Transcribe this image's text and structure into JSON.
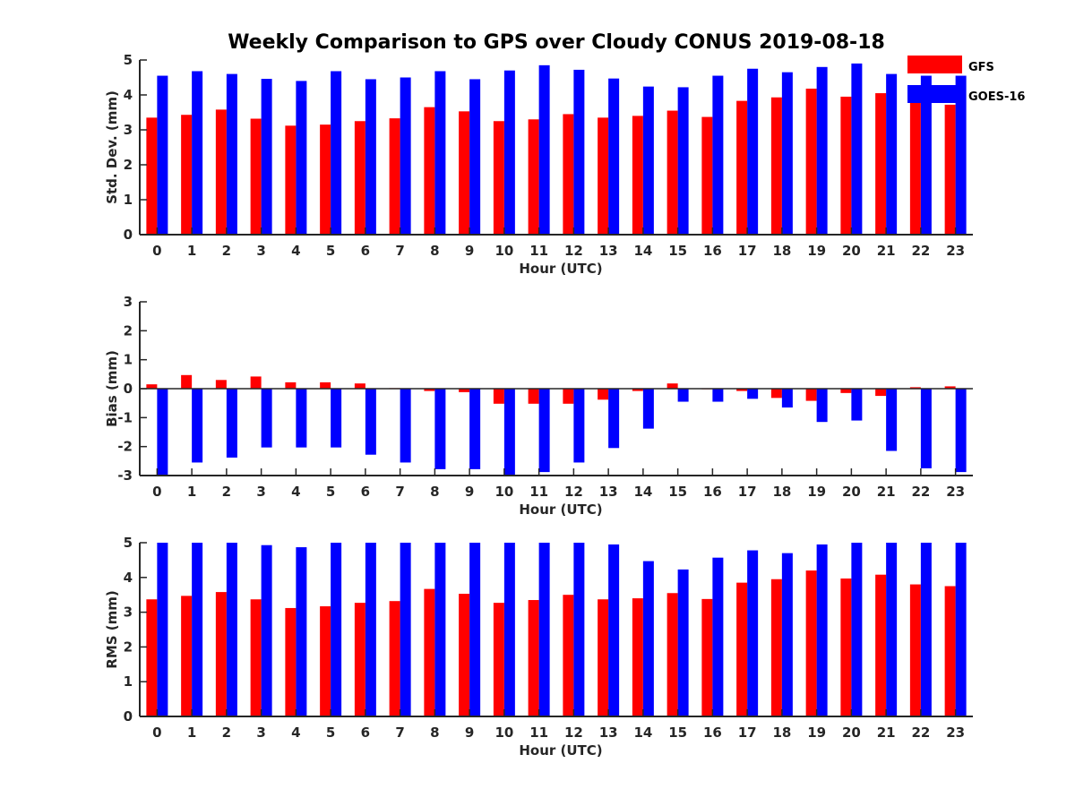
{
  "chart_data": [
    {
      "type": "bar",
      "title": "Weekly Comparison to GPS over Cloudy CONUS 2019-08-18",
      "xlabel": "Hour (UTC)",
      "ylabel": "Std. Dev. (mm)",
      "ylim": [
        0,
        5
      ],
      "yticks": [
        "0",
        "1",
        "2",
        "3",
        "4",
        "5"
      ],
      "categories": [
        "0",
        "1",
        "2",
        "3",
        "4",
        "5",
        "6",
        "7",
        "8",
        "9",
        "10",
        "11",
        "12",
        "13",
        "14",
        "15",
        "16",
        "17",
        "18",
        "19",
        "20",
        "21",
        "22",
        "23"
      ],
      "legend": "top-right",
      "series": [
        {
          "name": "GFS",
          "color": "#ff0000",
          "values": [
            3.35,
            3.43,
            3.58,
            3.32,
            3.12,
            3.15,
            3.25,
            3.33,
            3.65,
            3.53,
            3.25,
            3.3,
            3.45,
            3.35,
            3.4,
            3.55,
            3.37,
            3.83,
            3.93,
            4.18,
            3.95,
            4.05,
            3.78,
            3.72
          ]
        },
        {
          "name": "GOES-16",
          "color": "#0000ff",
          "values": [
            4.55,
            4.68,
            4.6,
            4.46,
            4.4,
            4.68,
            4.45,
            4.5,
            4.68,
            4.45,
            4.7,
            4.85,
            4.72,
            4.47,
            4.24,
            4.22,
            4.55,
            4.75,
            4.65,
            4.8,
            4.9,
            4.6,
            4.55,
            4.55
          ]
        }
      ]
    },
    {
      "type": "bar",
      "xlabel": "Hour (UTC)",
      "ylabel": "Bias (mm)",
      "ylim": [
        -3,
        3
      ],
      "yticks": [
        "-3",
        "-2",
        "-1",
        "0",
        "1",
        "2",
        "3"
      ],
      "categories": [
        "0",
        "1",
        "2",
        "3",
        "4",
        "5",
        "6",
        "7",
        "8",
        "9",
        "10",
        "11",
        "12",
        "13",
        "14",
        "15",
        "16",
        "17",
        "18",
        "19",
        "20",
        "21",
        "22",
        "23"
      ],
      "series": [
        {
          "name": "GFS",
          "color": "#ff0000",
          "values": [
            0.15,
            0.47,
            0.3,
            0.42,
            0.22,
            0.22,
            0.18,
            0.02,
            -0.08,
            -0.12,
            -0.52,
            -0.52,
            -0.52,
            -0.38,
            -0.08,
            0.18,
            -0.02,
            -0.08,
            -0.32,
            -0.42,
            -0.15,
            -0.25,
            0.05,
            0.08
          ]
        },
        {
          "name": "GOES-16",
          "color": "#0000ff",
          "values": [
            -3.0,
            -2.55,
            -2.38,
            -2.03,
            -2.03,
            -2.03,
            -2.28,
            -2.55,
            -2.78,
            -2.78,
            -3.0,
            -2.88,
            -2.55,
            -2.05,
            -1.38,
            -0.45,
            -0.45,
            -0.35,
            -0.65,
            -1.15,
            -1.1,
            -2.15,
            -2.75,
            -2.88
          ]
        }
      ]
    },
    {
      "type": "bar",
      "xlabel": "Hour (UTC)",
      "ylabel": "RMS (mm)",
      "ylim": [
        0,
        5
      ],
      "yticks": [
        "0",
        "1",
        "2",
        "3",
        "4",
        "5"
      ],
      "categories": [
        "0",
        "1",
        "2",
        "3",
        "4",
        "5",
        "6",
        "7",
        "8",
        "9",
        "10",
        "11",
        "12",
        "13",
        "14",
        "15",
        "16",
        "17",
        "18",
        "19",
        "20",
        "21",
        "22",
        "23"
      ],
      "series": [
        {
          "name": "GFS",
          "color": "#ff0000",
          "values": [
            3.37,
            3.47,
            3.58,
            3.37,
            3.12,
            3.17,
            3.27,
            3.32,
            3.67,
            3.53,
            3.27,
            3.35,
            3.5,
            3.37,
            3.4,
            3.55,
            3.38,
            3.85,
            3.95,
            4.2,
            3.97,
            4.08,
            3.8,
            3.75
          ]
        },
        {
          "name": "GOES-16",
          "color": "#0000ff",
          "values": [
            5.0,
            5.0,
            5.0,
            4.93,
            4.87,
            5.0,
            5.0,
            5.0,
            5.0,
            5.0,
            5.0,
            5.0,
            5.0,
            4.95,
            4.47,
            4.23,
            4.57,
            4.78,
            4.7,
            4.95,
            5.0,
            5.0,
            5.0,
            5.0
          ]
        }
      ]
    }
  ]
}
